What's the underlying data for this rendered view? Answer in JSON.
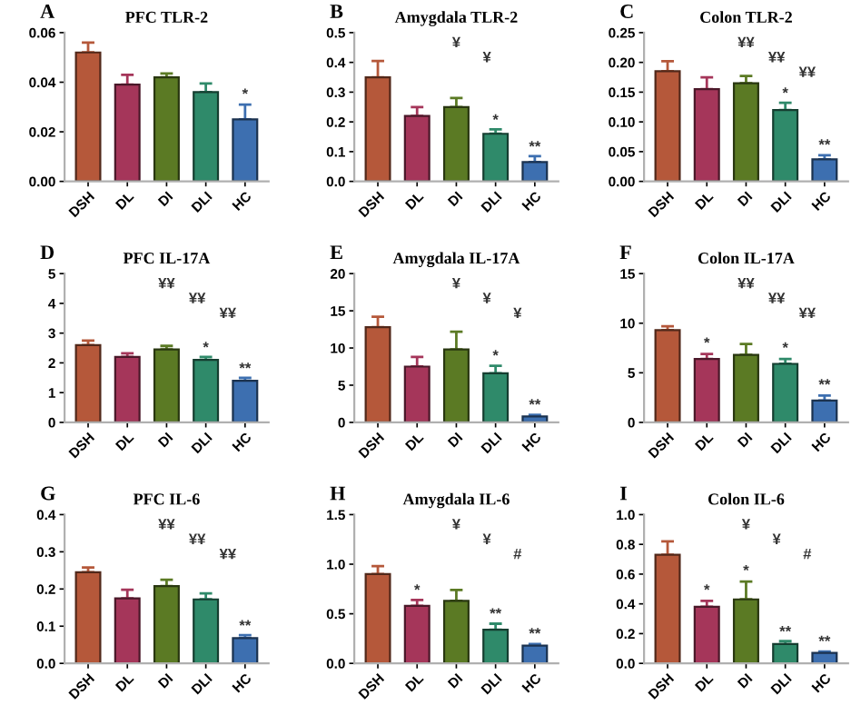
{
  "chart_data": [
    {
      "type": "bar",
      "title": "PFC TLR-2",
      "categories": [
        "DSH",
        "DL",
        "DI",
        "DLI",
        "HC"
      ],
      "colors": [
        "#b5583a",
        "#a5365a",
        "#5b7a24",
        "#2f8a6a",
        "#3d6fb0"
      ],
      "values": [
        0.052,
        0.039,
        0.042,
        0.036,
        0.025
      ],
      "errors": [
        [
          0.052,
          0.056
        ],
        [
          0.039,
          0.043
        ],
        [
          0.042,
          0.0435
        ],
        [
          0.036,
          0.0395
        ],
        [
          0.025,
          0.031
        ]
      ],
      "ylim": [
        0,
        0.06
      ],
      "yticks": [
        {
          "value": 0,
          "label": "0.00"
        },
        {
          "value": 0.02,
          "label": "0.02"
        },
        {
          "value": 0.04,
          "label": "0.04"
        },
        {
          "value": 0.06,
          "label": "0.06"
        }
      ],
      "grid": false,
      "legend": false,
      "annotations": [
        "A",
        {
          "text": "*",
          "x": "HC",
          "y": 0.032
        }
      ]
    },
    {
      "type": "bar",
      "title": "Amygdala TLR-2",
      "categories": [
        "DSH",
        "DL",
        "DI",
        "DLI",
        "HC"
      ],
      "colors": [
        "#b5583a",
        "#a5365a",
        "#5b7a24",
        "#2f8a6a",
        "#3d6fb0"
      ],
      "values": [
        0.35,
        0.22,
        0.25,
        0.16,
        0.065
      ],
      "errors": [
        [
          0.35,
          0.405
        ],
        [
          0.22,
          0.25
        ],
        [
          0.25,
          0.28
        ],
        [
          0.16,
          0.175
        ],
        [
          0.065,
          0.085
        ]
      ],
      "ylim": [
        0,
        0.5
      ],
      "yticks": [
        {
          "value": 0,
          "label": "0.0"
        },
        0.1,
        0.2,
        0.3,
        0.4,
        0.5
      ],
      "grid": false,
      "legend": false,
      "annotations": [
        "B",
        {
          "text": "*",
          "x": "DLI",
          "y": 0.18
        },
        {
          "text": "**",
          "x": "HC",
          "y": 0.09
        },
        "¥",
        "¥"
      ]
    },
    {
      "type": "bar",
      "title": "Colon TLR-2",
      "categories": [
        "DSH",
        "DL",
        "DI",
        "DLI",
        "HC"
      ],
      "colors": [
        "#b5583a",
        "#a5365a",
        "#5b7a24",
        "#2f8a6a",
        "#3d6fb0"
      ],
      "values": [
        0.185,
        0.155,
        0.165,
        0.12,
        0.037
      ],
      "errors": [
        [
          0.185,
          0.202
        ],
        [
          0.155,
          0.175
        ],
        [
          0.165,
          0.177
        ],
        [
          0.12,
          0.132
        ],
        [
          0.037,
          0.044
        ]
      ],
      "ylim": [
        0,
        0.25
      ],
      "yticks": [
        {
          "value": 0,
          "label": "0.00"
        },
        {
          "value": 0.05,
          "label": "0.05"
        },
        {
          "value": 0.1,
          "label": "0.10"
        },
        {
          "value": 0.15,
          "label": "0.15"
        },
        {
          "value": 0.2,
          "label": "0.20"
        },
        0.25
      ],
      "grid": false,
      "legend": false,
      "annotations": [
        "C",
        {
          "text": "*",
          "x": "DLI",
          "y": 0.135
        },
        {
          "text": "**",
          "x": "HC",
          "y": 0.048
        },
        "¥¥",
        "¥¥",
        "¥¥"
      ]
    },
    {
      "type": "bar",
      "title": "PFC IL-17A",
      "categories": [
        "DSH",
        "DL",
        "DI",
        "DLI",
        "HC"
      ],
      "colors": [
        "#b5583a",
        "#a5365a",
        "#5b7a24",
        "#2f8a6a",
        "#3d6fb0"
      ],
      "values": [
        2.6,
        2.2,
        2.45,
        2.1,
        1.4
      ],
      "errors": [
        [
          2.6,
          2.75
        ],
        [
          2.2,
          2.32
        ],
        [
          2.45,
          2.57
        ],
        [
          2.1,
          2.2
        ],
        [
          1.4,
          1.5
        ]
      ],
      "ylim": [
        0,
        5
      ],
      "yticks": [
        0,
        1,
        2,
        3,
        4,
        5
      ],
      "grid": false,
      "legend": false,
      "annotations": [
        "D",
        {
          "text": "*",
          "x": "DLI",
          "y": 2.25
        },
        {
          "text": "**",
          "x": "HC",
          "y": 1.55
        },
        "¥¥",
        "¥¥",
        "¥¥"
      ]
    },
    {
      "type": "bar",
      "title": "Amygdala IL-17A",
      "categories": [
        "DSH",
        "DL",
        "DI",
        "DLI",
        "HC"
      ],
      "colors": [
        "#b5583a",
        "#a5365a",
        "#5b7a24",
        "#2f8a6a",
        "#3d6fb0"
      ],
      "values": [
        12.8,
        7.5,
        9.8,
        6.6,
        0.8
      ],
      "errors": [
        [
          12.8,
          14.2
        ],
        [
          7.5,
          8.8
        ],
        [
          9.8,
          12.2
        ],
        [
          6.6,
          7.6
        ],
        [
          0.8,
          1.0
        ]
      ],
      "ylim": [
        0,
        20
      ],
      "yticks": [
        0,
        5,
        10,
        15,
        20
      ],
      "grid": false,
      "legend": false,
      "annotations": [
        "E",
        {
          "text": "*",
          "x": "DLI",
          "y": 7.9
        },
        {
          "text": "**",
          "x": "HC",
          "y": 1.3
        },
        "¥",
        "¥",
        "¥"
      ]
    },
    {
      "type": "bar",
      "title": "Colon IL-17A",
      "categories": [
        "DSH",
        "DL",
        "DI",
        "DLI",
        "HC"
      ],
      "colors": [
        "#b5583a",
        "#a5365a",
        "#5b7a24",
        "#2f8a6a",
        "#3d6fb0"
      ],
      "values": [
        9.3,
        6.4,
        6.8,
        5.9,
        2.2
      ],
      "errors": [
        [
          9.3,
          9.7
        ],
        [
          6.4,
          6.9
        ],
        [
          6.8,
          7.9
        ],
        [
          5.9,
          6.4
        ],
        [
          2.2,
          2.7
        ]
      ],
      "ylim": [
        0,
        15
      ],
      "yticks": [
        0,
        5,
        10,
        15
      ],
      "grid": false,
      "legend": false,
      "annotations": [
        "F",
        {
          "text": "*",
          "x": "DL",
          "y": 7.2
        },
        {
          "text": "*",
          "x": "DLI",
          "y": 6.7
        },
        {
          "text": "**",
          "x": "HC",
          "y": 3.0
        },
        "¥¥",
        "¥¥",
        "¥¥"
      ]
    },
    {
      "type": "bar",
      "title": "PFC IL-6",
      "categories": [
        "DSH",
        "DL",
        "DI",
        "DLI",
        "HC"
      ],
      "colors": [
        "#b5583a",
        "#a5365a",
        "#5b7a24",
        "#2f8a6a",
        "#3d6fb0"
      ],
      "values": [
        0.245,
        0.175,
        0.208,
        0.172,
        0.068
      ],
      "errors": [
        [
          0.245,
          0.258
        ],
        [
          0.175,
          0.198
        ],
        [
          0.208,
          0.225
        ],
        [
          0.172,
          0.188
        ],
        [
          0.068,
          0.076
        ]
      ],
      "ylim": [
        0,
        0.4
      ],
      "yticks": [
        {
          "value": 0,
          "label": "0.0"
        },
        0.1,
        0.2,
        0.3,
        0.4
      ],
      "grid": false,
      "legend": false,
      "annotations": [
        "G",
        {
          "text": "**",
          "x": "HC",
          "y": 0.08
        },
        "¥¥",
        "¥¥",
        "¥¥"
      ]
    },
    {
      "type": "bar",
      "title": "Amygdala IL-6",
      "categories": [
        "DSH",
        "DL",
        "DI",
        "DLI",
        "HC"
      ],
      "colors": [
        "#b5583a",
        "#a5365a",
        "#5b7a24",
        "#2f8a6a",
        "#3d6fb0"
      ],
      "values": [
        0.9,
        0.58,
        0.63,
        0.34,
        0.18
      ],
      "errors": [
        [
          0.9,
          0.98
        ],
        [
          0.58,
          0.64
        ],
        [
          0.63,
          0.74
        ],
        [
          0.34,
          0.4
        ],
        [
          0.18,
          0.195
        ]
      ],
      "ylim": [
        0,
        1.5
      ],
      "yticks": [
        {
          "value": 0,
          "label": "0.0"
        },
        0.5,
        {
          "value": 1,
          "label": "1.0"
        },
        1.5
      ],
      "grid": false,
      "legend": false,
      "annotations": [
        "H",
        {
          "text": "*",
          "x": "DL",
          "y": 0.66
        },
        {
          "text": "**",
          "x": "DLI",
          "y": 0.42
        },
        {
          "text": "**",
          "x": "HC",
          "y": 0.22
        },
        "¥",
        "¥",
        "#"
      ]
    },
    {
      "type": "bar",
      "title": "Colon IL-6",
      "categories": [
        "DSH",
        "DL",
        "DI",
        "DLI",
        "HC"
      ],
      "colors": [
        "#b5583a",
        "#a5365a",
        "#5b7a24",
        "#2f8a6a",
        "#3d6fb0"
      ],
      "values": [
        0.73,
        0.38,
        0.43,
        0.13,
        0.07
      ],
      "errors": [
        [
          0.73,
          0.82
        ],
        [
          0.38,
          0.42
        ],
        [
          0.43,
          0.55
        ],
        [
          0.13,
          0.15
        ],
        [
          0.07,
          0.08
        ]
      ],
      "ylim": [
        0,
        1.0
      ],
      "yticks": [
        {
          "value": 0,
          "label": "0.0"
        },
        0.2,
        0.4,
        0.6,
        0.8,
        {
          "value": 1,
          "label": "1.0"
        }
      ],
      "grid": false,
      "legend": false,
      "annotations": [
        "I",
        {
          "text": "*",
          "x": "DL",
          "y": 0.44
        },
        {
          "text": "*",
          "x": "DI",
          "y": 0.57
        },
        {
          "text": "**",
          "x": "DLI",
          "y": 0.16
        },
        {
          "text": "**",
          "x": "HC",
          "y": 0.095
        },
        "¥",
        "¥",
        "#"
      ]
    }
  ]
}
